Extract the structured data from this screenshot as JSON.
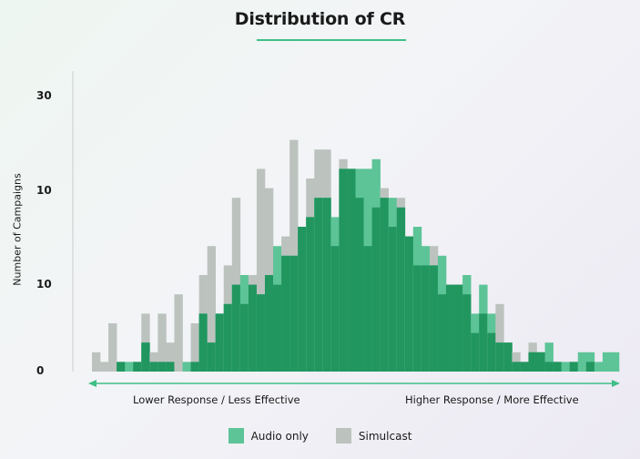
{
  "chart_data": {
    "type": "bar",
    "title": "Distribution of CR",
    "ylabel": "Number of Campaigns",
    "x_caption_left": "Lower Response / Less Effective",
    "x_caption_right": "Higher Response / More Effective",
    "y_ticks": [
      "0",
      "10",
      "10",
      "30"
    ],
    "ylim": [
      0,
      30
    ],
    "legend_position": "bottom-center",
    "series": [
      {
        "name": "Audio only",
        "color": "#5dc497",
        "values": [
          0,
          0,
          0,
          1,
          1,
          1,
          3,
          1,
          1,
          1,
          0,
          1,
          1,
          6,
          3,
          6,
          7,
          9,
          10,
          9,
          8,
          10,
          13,
          12,
          12,
          15,
          16,
          18,
          18,
          16,
          21,
          21,
          21,
          21,
          22,
          18,
          18,
          17,
          14,
          15,
          13,
          11,
          12,
          9,
          9,
          10,
          6,
          9,
          6,
          3,
          3,
          1,
          1,
          2,
          2,
          3,
          1,
          1,
          1,
          2,
          2,
          1,
          2,
          2
        ]
      },
      {
        "name": "Simulcast",
        "color": "#bcc3bf",
        "values": [
          2,
          1,
          5,
          1,
          0,
          1,
          6,
          2,
          6,
          3,
          8,
          0,
          5,
          10,
          13,
          6,
          11,
          18,
          7,
          10,
          21,
          19,
          9,
          14,
          24,
          15,
          20,
          23,
          23,
          13,
          22,
          21,
          18,
          13,
          17,
          19,
          15,
          18,
          14,
          11,
          11,
          13,
          8,
          9,
          9,
          8,
          4,
          6,
          4,
          7,
          3,
          2,
          1,
          3,
          2,
          1,
          1,
          0,
          1,
          0,
          1,
          0,
          0,
          0
        ]
      }
    ]
  },
  "colors": {
    "overlap": "#21965f",
    "axis": "#3fbf87",
    "axis_line": "#cccccc"
  }
}
